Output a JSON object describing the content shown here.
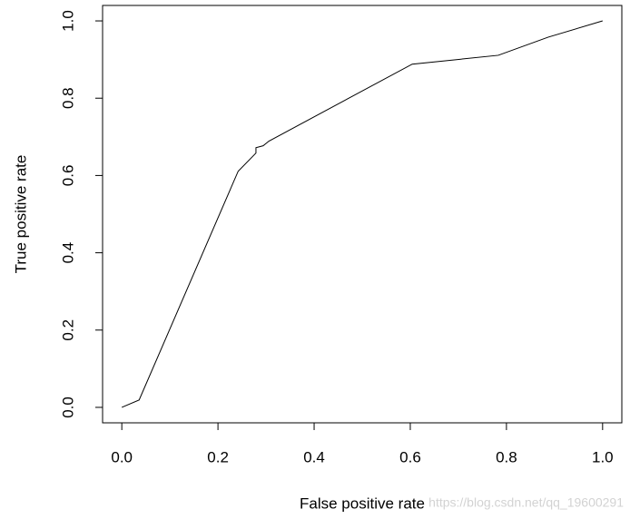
{
  "chart_data": {
    "type": "line",
    "xlabel": "False positive rate",
    "ylabel": "True positive rate",
    "x": [
      0,
      0.036,
      0.242,
      0.279,
      0.279,
      0.294,
      0.306,
      0.604,
      0.783,
      0.887,
      1
    ],
    "series": [
      {
        "color": "#000000",
        "values": [
          0,
          0.019,
          0.611,
          0.658,
          0.672,
          0.677,
          0.689,
          0.888,
          0.911,
          0.958,
          1
        ]
      }
    ],
    "xlim": [
      -0.04,
      1.04
    ],
    "ylim": [
      -0.04,
      1.04
    ],
    "xticks": [
      {
        "value": 0,
        "label": "0.0"
      },
      0.2,
      0.4,
      0.6,
      0.8,
      {
        "value": 1,
        "label": "1.0"
      }
    ],
    "yticks": [
      {
        "value": 0,
        "label": "0.0"
      },
      0.2,
      0.4,
      0.6,
      0.8,
      {
        "value": 1,
        "label": "1.0"
      }
    ],
    "watermark": "https://blog.csdn.net/qq_19600291"
  }
}
